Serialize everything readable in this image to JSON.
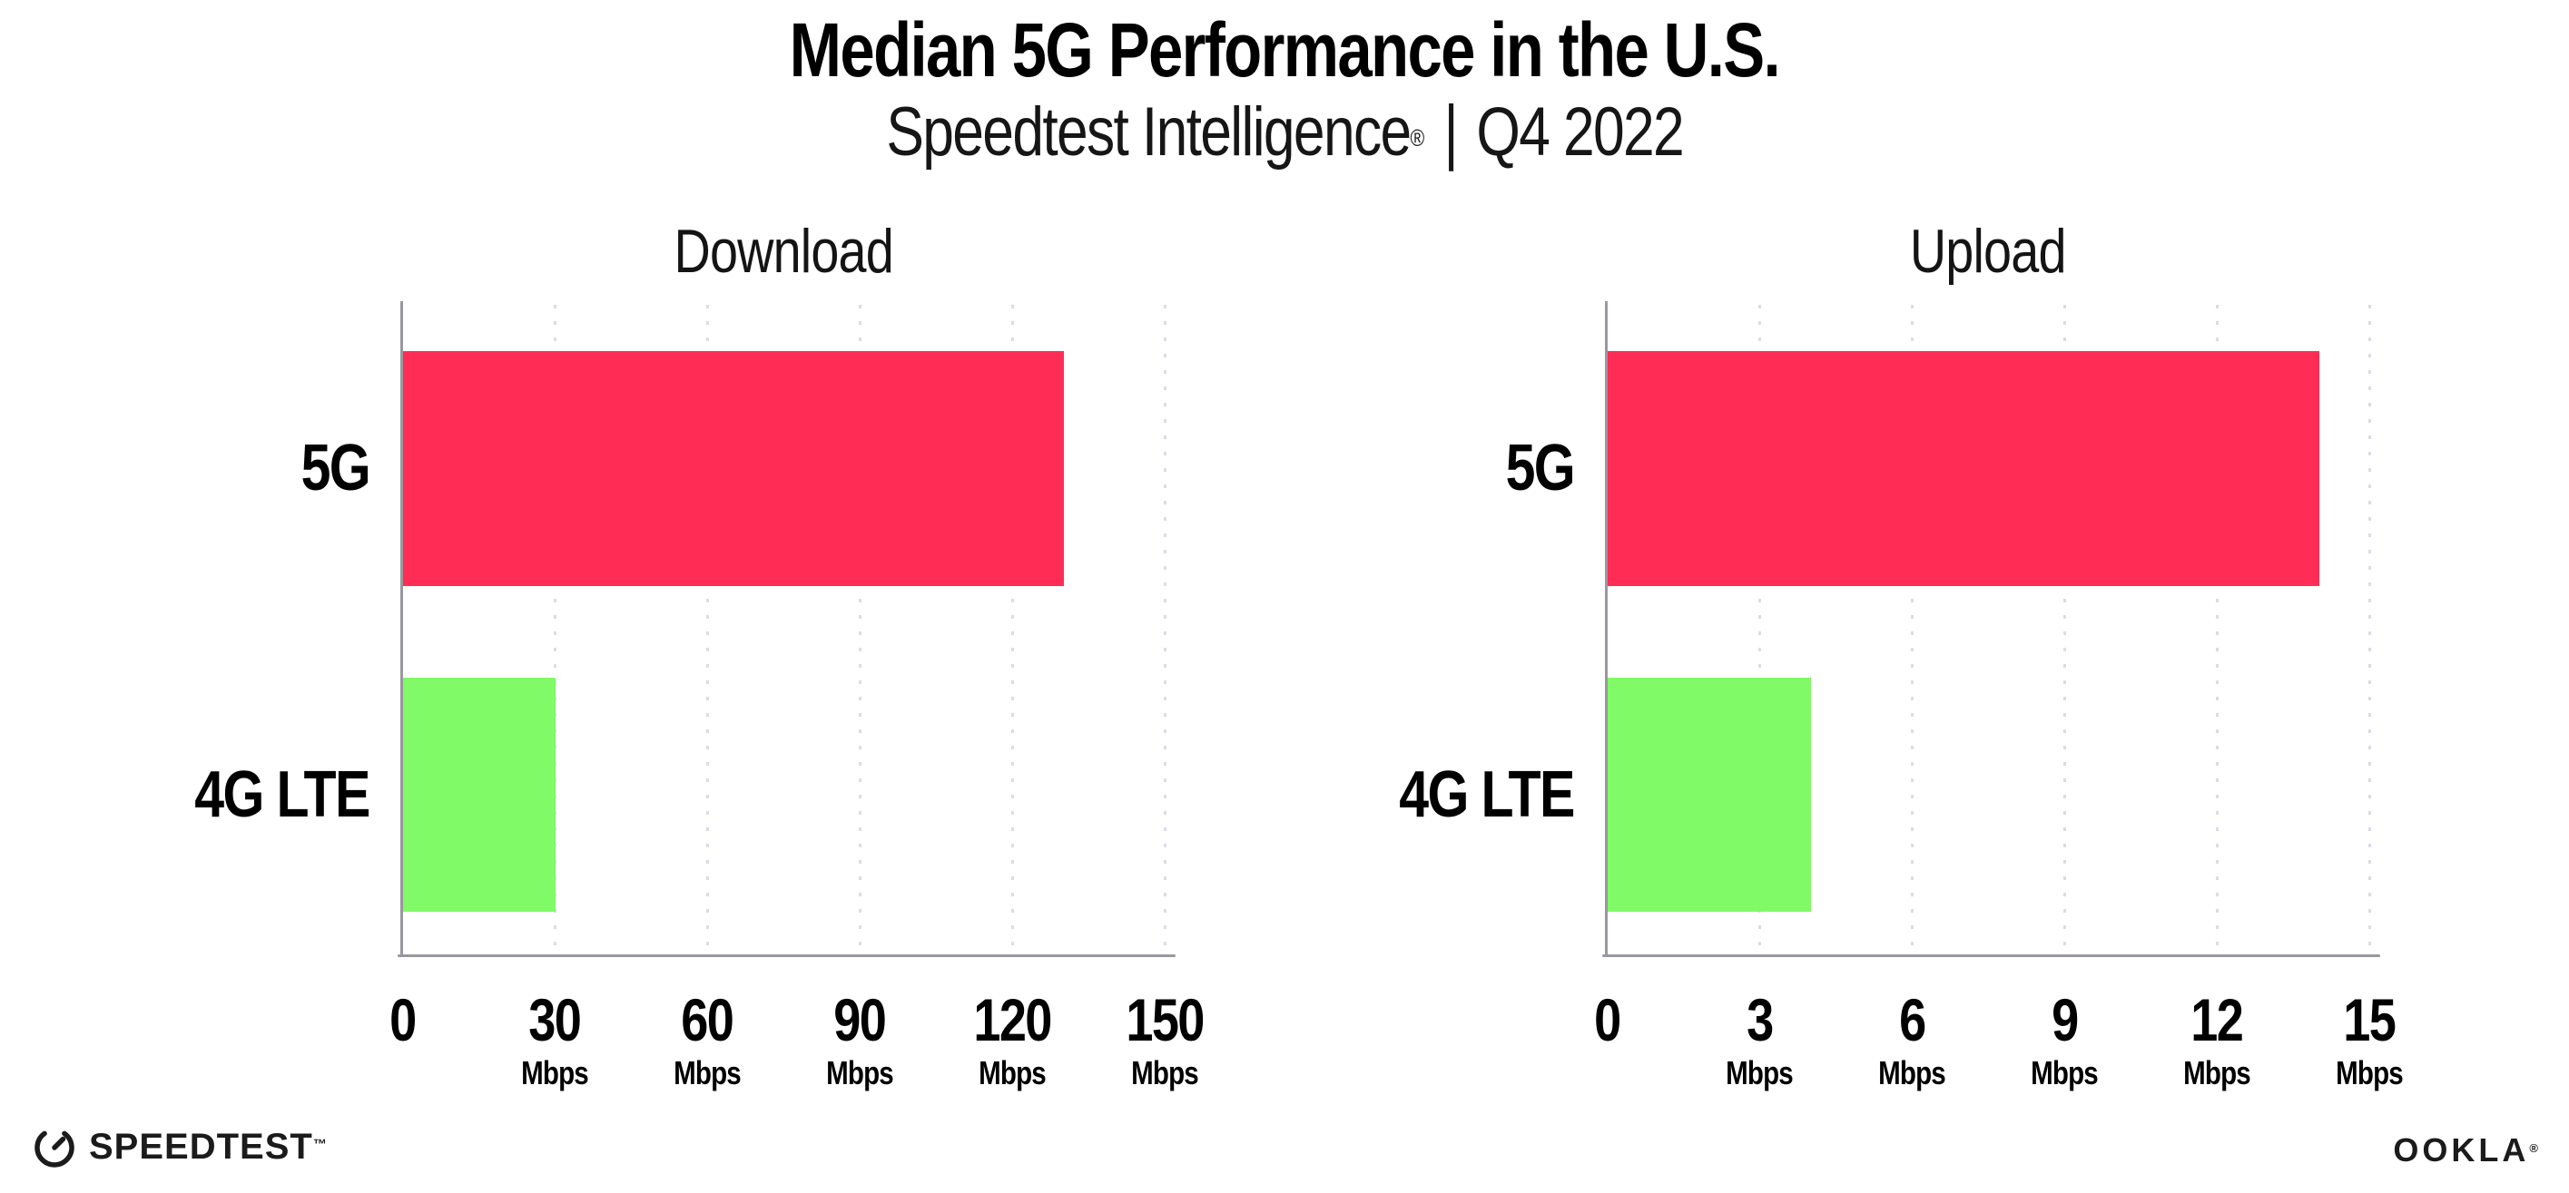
{
  "header": {
    "title": "Median 5G Performance in the U.S.",
    "subtitle_brand": "Speedtest Intelligence",
    "subtitle_reg": "®",
    "subtitle_divider": "|",
    "subtitle_period": "Q4 2022"
  },
  "colors": {
    "bar_5g": "#ff2d55",
    "bar_4g_lte": "#80fa66",
    "axis": "#98989e",
    "gridline": "#dcdce8"
  },
  "chart_data": [
    {
      "type": "bar",
      "orientation": "horizontal",
      "title": "Download",
      "categories": [
        "5G",
        "4G LTE"
      ],
      "values": [
        130,
        30
      ],
      "unit": "Mbps",
      "xlim": [
        0,
        150
      ],
      "xticks": [
        0,
        30,
        60,
        90,
        120,
        150
      ],
      "tick_unit_label": "Mbps",
      "grid": "dotted-vertical",
      "legend": "none",
      "bar_colors": [
        "#ff2d55",
        "#80fa66"
      ]
    },
    {
      "type": "bar",
      "orientation": "horizontal",
      "title": "Upload",
      "categories": [
        "5G",
        "4G LTE"
      ],
      "values": [
        14,
        4
      ],
      "unit": "Mbps",
      "xlim": [
        0,
        15
      ],
      "xticks": [
        0,
        3,
        6,
        9,
        12,
        15
      ],
      "tick_unit_label": "Mbps",
      "grid": "dotted-vertical",
      "legend": "none",
      "bar_colors": [
        "#ff2d55",
        "#80fa66"
      ]
    }
  ],
  "footer": {
    "speedtest_label": "SPEEDTEST",
    "speedtest_tm": "™",
    "ookla_label": "OOKLA",
    "ookla_reg": "®"
  }
}
